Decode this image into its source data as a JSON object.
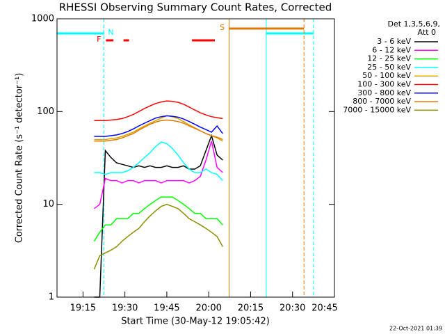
{
  "chart_data": {
    "type": "line",
    "title": "RHESSI Observing Summary Count Rates, Corrected",
    "x_label": "Start Time (30-May-12 19:05:42)",
    "y_label": "Corrected Count Rate (s⁻¹ detector⁻¹)",
    "legend_title": [
      "Det 1,3,5,6,9,",
      "Att 0"
    ],
    "footer": "22-Oct-2021 01:39",
    "log_y": true,
    "xlim": [
      1145.7,
      1245
    ],
    "ylim": [
      1,
      1000
    ],
    "xticks": [
      {
        "value": 1155,
        "label": "19:15"
      },
      {
        "value": 1170,
        "label": "19:30"
      },
      {
        "value": 1185,
        "label": "19:45"
      },
      {
        "value": 1200,
        "label": "20:00"
      },
      {
        "value": 1215,
        "label": "20:15"
      },
      {
        "value": 1230,
        "label": "20:30"
      },
      {
        "value": 1245,
        "label": "20:45"
      }
    ],
    "yticks": [
      1,
      10,
      100,
      1000
    ],
    "x": [
      1159,
      1161,
      1163,
      1165,
      1167,
      1169,
      1171,
      1173,
      1175,
      1177,
      1179,
      1181,
      1183,
      1185,
      1187,
      1189,
      1191,
      1193,
      1195,
      1197,
      1199,
      1201,
      1203,
      1205
    ],
    "series": [
      {
        "name": "3 - 6 keV",
        "color": "#000000",
        "values": [
          1,
          1,
          38,
          32,
          28,
          27,
          26,
          25,
          26,
          25,
          26,
          25,
          25,
          26,
          25,
          25,
          26,
          24,
          24,
          26,
          38,
          55,
          34,
          30
        ]
      },
      {
        "name": "6 - 12 keV",
        "color": "#ff00ff",
        "values": [
          9,
          10,
          19,
          18,
          18,
          17,
          18,
          18,
          17,
          18,
          18,
          18,
          17,
          18,
          18,
          18,
          18,
          17,
          18,
          20,
          30,
          48,
          25,
          22
        ]
      },
      {
        "name": "12 - 25 keV",
        "color": "#00ff00",
        "values": [
          4,
          5,
          6,
          6,
          7,
          7,
          7,
          8,
          8,
          9,
          10,
          11,
          12,
          12,
          12,
          11,
          10,
          9,
          8,
          8,
          7,
          7,
          7,
          6
        ]
      },
      {
        "name": "25 - 50 keV",
        "color": "#00ffff",
        "values": [
          22,
          22,
          21,
          22,
          22,
          22,
          23,
          25,
          28,
          32,
          36,
          42,
          47,
          45,
          40,
          34,
          28,
          24,
          22,
          22,
          24,
          22,
          21,
          18
        ]
      },
      {
        "name": "50 - 100 keV",
        "color": "#d8a800",
        "values": [
          50,
          50,
          50,
          51,
          52,
          54,
          57,
          60,
          65,
          70,
          75,
          80,
          85,
          90,
          88,
          84,
          78,
          72,
          67,
          62,
          58,
          55,
          52,
          48
        ]
      },
      {
        "name": "100 - 300 keV",
        "color": "#ff0000",
        "values": [
          80,
          80,
          80,
          81,
          82,
          84,
          88,
          93,
          100,
          108,
          115,
          122,
          127,
          130,
          129,
          126,
          120,
          112,
          104,
          97,
          92,
          88,
          86,
          84
        ]
      },
      {
        "name": "300 - 800 keV",
        "color": "#0000ff",
        "values": [
          54,
          54,
          54,
          55,
          56,
          58,
          61,
          65,
          70,
          75,
          80,
          85,
          88,
          90,
          89,
          87,
          83,
          78,
          73,
          68,
          64,
          60,
          70,
          58
        ]
      },
      {
        "name": "800 - 7000 keV",
        "color": "#e07800",
        "values": [
          48,
          48,
          48,
          49,
          50,
          52,
          55,
          58,
          63,
          68,
          73,
          77,
          80,
          81,
          80,
          78,
          75,
          70,
          66,
          62,
          58,
          55,
          53,
          50
        ]
      },
      {
        "name": "7000 - 15000 keV",
        "color": "#8c8c00",
        "values": [
          2,
          2.8,
          3,
          3.2,
          3.5,
          4,
          4.5,
          5,
          5.5,
          6.5,
          7.5,
          8.5,
          9.5,
          10,
          9.5,
          9,
          8,
          7,
          6.5,
          6,
          5.5,
          5,
          4.5,
          3.5
        ]
      }
    ],
    "intervals": [
      {
        "label": "N",
        "color": "#00ffff",
        "start": [
          1145.7,
          1220.6
        ],
        "end": [
          1162.5,
          1237.5
        ]
      },
      {
        "label": "S",
        "color": "#e07800",
        "start": [
          1207.3
        ],
        "end": [
          1234.1
        ]
      },
      {
        "label": "F",
        "color": "#ff0000",
        "start": [
          1163.2,
          1169.5,
          1194.0
        ],
        "end": [
          1165.9,
          1171.5,
          1202.2
        ]
      }
    ]
  }
}
